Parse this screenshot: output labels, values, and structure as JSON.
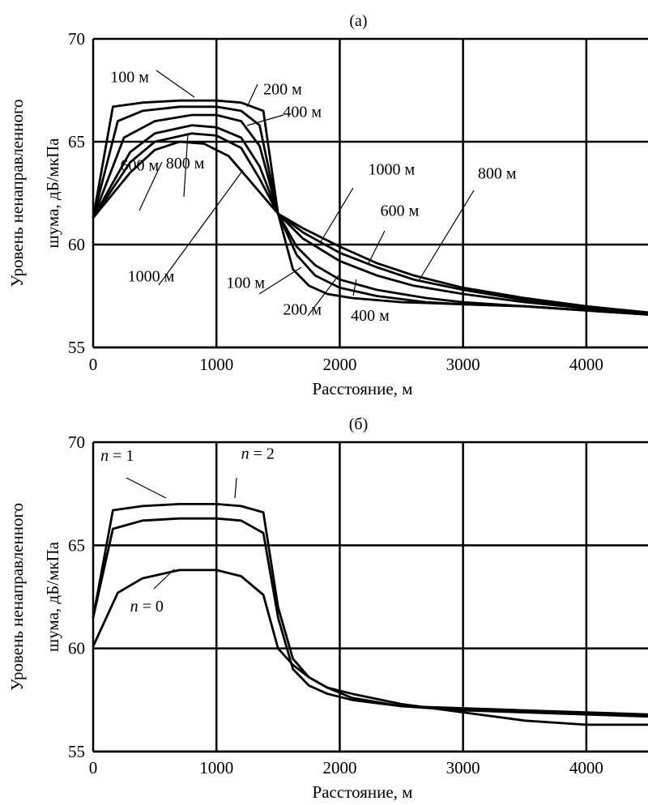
{
  "chart_data": [
    {
      "type": "line",
      "title": "(а)",
      "xlabel": "Расстояние, м",
      "ylabel_lines": [
        "Уровень ненаправленного",
        "шума, дБ/мкПа"
      ],
      "xlim": [
        0,
        4500
      ],
      "ylim": [
        55,
        70
      ],
      "xticks": [
        0,
        1000,
        2000,
        3000,
        4000
      ],
      "yticks": [
        55,
        60,
        65,
        70
      ],
      "grid": true,
      "series": [
        {
          "name": "100 м",
          "x": [
            0,
            160,
            400,
            700,
            1000,
            1200,
            1380,
            1500,
            1620,
            1750,
            1900,
            2100,
            2500,
            3000,
            3500,
            4000,
            4500
          ],
          "y": [
            61.3,
            66.7,
            66.9,
            67.0,
            67.0,
            66.9,
            66.5,
            61.5,
            58.8,
            58.0,
            57.6,
            57.4,
            57.2,
            57.1,
            57.0,
            56.8,
            56.6
          ]
        },
        {
          "name": "200 м",
          "x": [
            0,
            200,
            400,
            700,
            1000,
            1200,
            1350,
            1500,
            1650,
            1800,
            2000,
            2300,
            2700,
            3000,
            3500,
            4000,
            4500
          ],
          "y": [
            61.3,
            66.0,
            66.5,
            66.7,
            66.7,
            66.5,
            65.8,
            61.5,
            59.5,
            58.5,
            57.9,
            57.5,
            57.2,
            57.1,
            57.0,
            56.8,
            56.6
          ]
        },
        {
          "name": "400 м",
          "x": [
            0,
            250,
            500,
            800,
            1000,
            1200,
            1350,
            1500,
            1650,
            1800,
            2000,
            2300,
            2700,
            3000,
            3500,
            4000,
            4500
          ],
          "y": [
            61.3,
            65.2,
            66.0,
            66.3,
            66.3,
            66.0,
            64.8,
            61.5,
            59.9,
            59.0,
            58.3,
            57.8,
            57.4,
            57.2,
            57.0,
            56.8,
            56.6
          ]
        },
        {
          "name": "600 м",
          "x": [
            0,
            300,
            500,
            800,
            1000,
            1200,
            1350,
            1500,
            1700,
            2000,
            2300,
            2600,
            3000,
            3500,
            4000,
            4500
          ],
          "y": [
            61.3,
            64.5,
            65.4,
            65.8,
            65.7,
            65.2,
            63.8,
            61.5,
            60.3,
            59.2,
            58.5,
            58.0,
            57.6,
            57.2,
            56.9,
            56.6
          ]
        },
        {
          "name": "800 м",
          "x": [
            0,
            300,
            500,
            800,
            1000,
            1200,
            1350,
            1500,
            1700,
            2000,
            2300,
            2600,
            3000,
            3500,
            4000,
            4500
          ],
          "y": [
            61.3,
            64.0,
            65.0,
            65.4,
            65.3,
            64.7,
            63.2,
            61.5,
            60.6,
            59.6,
            58.9,
            58.3,
            57.8,
            57.3,
            56.9,
            56.6
          ]
        },
        {
          "name": "1000 м",
          "x": [
            0,
            300,
            500,
            700,
            900,
            1100,
            1300,
            1500,
            1700,
            2000,
            2300,
            2600,
            3000,
            3500,
            4000,
            4500
          ],
          "y": [
            61.3,
            63.5,
            64.6,
            65.0,
            64.9,
            64.3,
            62.9,
            61.5,
            60.8,
            59.9,
            59.1,
            58.5,
            57.9,
            57.4,
            57.0,
            56.7
          ]
        }
      ],
      "annotations": [
        {
          "text": "100 м",
          "x": 140,
          "y": 67.9
        },
        {
          "text": "200 м",
          "x": 1380,
          "y": 67.3
        },
        {
          "text": "400 м",
          "x": 1540,
          "y": 66.2
        },
        {
          "text": "600 м",
          "x": 220,
          "y": 63.6
        },
        {
          "text": "800 м",
          "x": 590,
          "y": 63.7
        },
        {
          "text": "1000 м",
          "x": 2230,
          "y": 63.4
        },
        {
          "text": "600 м",
          "x": 2330,
          "y": 61.4
        },
        {
          "text": "800 м",
          "x": 3120,
          "y": 63.2
        },
        {
          "text": "1000 м",
          "x": 280,
          "y": 58.2
        },
        {
          "text": "100 м",
          "x": 1080,
          "y": 57.9
        },
        {
          "text": "200 м",
          "x": 1540,
          "y": 56.6
        },
        {
          "text": "400 м",
          "x": 2090,
          "y": 56.3
        }
      ]
    },
    {
      "type": "line",
      "title": "(б)",
      "xlabel": "Расстояние, м",
      "ylabel_lines": [
        "Уровень ненаправленного",
        "шума, дБ/мкПа"
      ],
      "xlim": [
        0,
        4500
      ],
      "ylim": [
        55,
        70
      ],
      "xticks": [
        0,
        1000,
        2000,
        3000,
        4000
      ],
      "yticks": [
        55,
        60,
        65,
        70
      ],
      "grid": true,
      "series": [
        {
          "name": "n = 2",
          "x": [
            0,
            160,
            400,
            700,
            1000,
            1200,
            1380,
            1500,
            1620,
            1750,
            1900,
            2100,
            2500,
            3000,
            3500,
            4000,
            4500
          ],
          "y": [
            61.5,
            66.7,
            66.9,
            67.0,
            67.0,
            66.9,
            66.6,
            62.0,
            59.5,
            58.6,
            58.1,
            57.6,
            57.2,
            57.1,
            57.0,
            56.9,
            56.8
          ]
        },
        {
          "name": "n = 1",
          "x": [
            0,
            160,
            400,
            700,
            1000,
            1200,
            1380,
            1500,
            1620,
            1750,
            1900,
            2100,
            2500,
            3000,
            3500,
            4000,
            4500
          ],
          "y": [
            61.5,
            65.8,
            66.2,
            66.3,
            66.3,
            66.2,
            65.6,
            61.5,
            59.0,
            58.2,
            57.8,
            57.5,
            57.2,
            57.0,
            56.9,
            56.8,
            56.7
          ]
        },
        {
          "name": "n = 0",
          "x": [
            0,
            200,
            400,
            700,
            1000,
            1200,
            1380,
            1500,
            1620,
            1750,
            1900,
            2100,
            2500,
            3000,
            3500,
            4000,
            4500
          ],
          "y": [
            60.1,
            62.7,
            63.4,
            63.8,
            63.8,
            63.5,
            62.6,
            60.0,
            59.2,
            58.6,
            58.1,
            57.8,
            57.3,
            56.9,
            56.5,
            56.3,
            56.3
          ]
        }
      ],
      "annotations": [
        {
          "text": "n = 1",
          "x": 60,
          "y": 69.1
        },
        {
          "text": "n = 2",
          "x": 1200,
          "y": 69.2
        },
        {
          "text": "n = 0",
          "x": 300,
          "y": 61.8
        }
      ]
    }
  ]
}
